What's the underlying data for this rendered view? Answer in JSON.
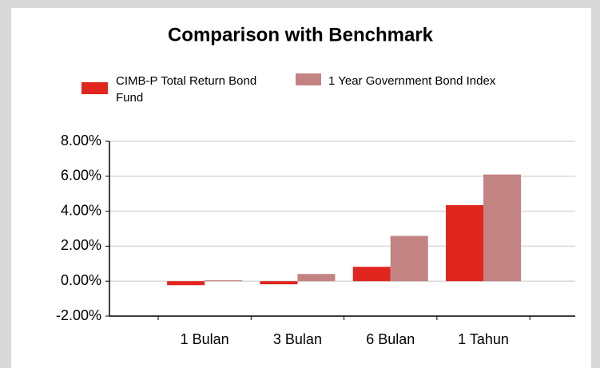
{
  "chart_data": {
    "type": "bar",
    "title": "Comparison with Benchmark",
    "categories": [
      "1 Bulan",
      "3 Bulan",
      "6 Bulan",
      "1 Tahun"
    ],
    "series": [
      {
        "name": "CIMB-P Total Return Bond Fund",
        "color": "#e0261f",
        "values": [
          -0.23,
          -0.18,
          0.82,
          4.35
        ]
      },
      {
        "name": "1 Year Government Bond Index",
        "color": "#c48383",
        "values": [
          0.05,
          0.41,
          2.59,
          6.1
        ]
      }
    ],
    "ylim": [
      -2,
      8
    ],
    "yticks": [
      {
        "value": -2,
        "label": "-2.00%"
      },
      {
        "value": 0,
        "label": "0.00%"
      },
      {
        "value": 2,
        "label": "2.00%"
      },
      {
        "value": 4,
        "label": "4.00%"
      },
      {
        "value": 6,
        "label": "6.00%"
      },
      {
        "value": 8,
        "label": "8.00%"
      }
    ],
    "grid": true
  }
}
